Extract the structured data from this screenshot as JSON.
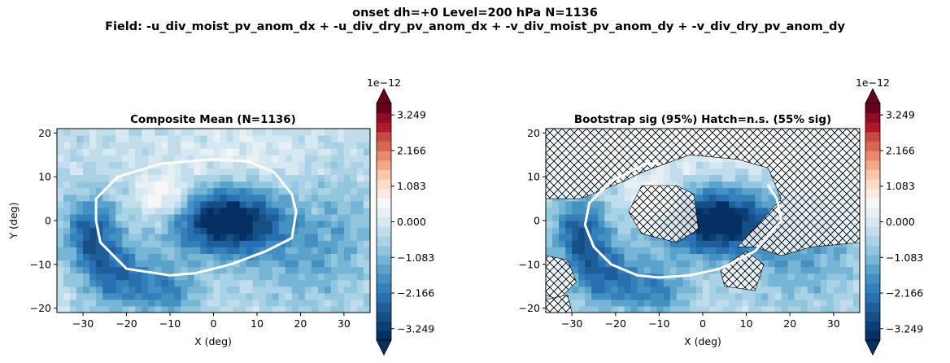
{
  "figure": {
    "title_line1": "onset  dh=+0   Level=200 hPa   N=1136",
    "title_line2": "Field: -u_div_moist_pv_anom_dx + -u_div_dry_pv_anom_dx + -v_div_moist_pv_anom_dy + -v_div_dry_pv_anom_dy"
  },
  "colors": {
    "ramp": [
      "#053061",
      "#0b3e74",
      "#164f86",
      "#205e9b",
      "#2870b1",
      "#3380bb",
      "#4291c2",
      "#5ba2cb",
      "#77b5d6",
      "#92c5de",
      "#aad2e6",
      "#c1ddeb",
      "#d6e8f1",
      "#e9f0f4",
      "#f7f7f7",
      "#faeae1",
      "#fcdbc7",
      "#f9c5ab",
      "#f4a685",
      "#e8896d",
      "#d66853",
      "#c54a41",
      "#b2182b",
      "#8e0c26",
      "#67001f"
    ],
    "contour": "#ffffff",
    "hatch": "#000000"
  },
  "chart_data": [
    {
      "type": "heatmap",
      "title": "Composite Mean  (N=1136)",
      "xlabel": "X (deg)",
      "ylabel": "Y (deg)",
      "xlim": [
        -36,
        36
      ],
      "ylim": [
        -21,
        21
      ],
      "xticks": [
        "−30",
        "−20",
        "−10",
        "0",
        "10",
        "20",
        "30"
      ],
      "yticks": [
        "−20",
        "−10",
        "0",
        "10",
        "20"
      ],
      "grid": false,
      "colorbar": {
        "scale_label": "1e−12",
        "vmin": -3.6,
        "vmax": 3.6,
        "ticks": [
          -3.249,
          -2.166,
          -1.083,
          0.0,
          1.083,
          2.166,
          3.249
        ],
        "tick_labels": [
          "−3.249",
          "−2.166",
          "−1.083",
          "0.000",
          "1.083",
          "2.166",
          "3.249"
        ]
      },
      "features": [
        {
          "kind": "core_min",
          "x": 3,
          "y": 0,
          "value": -3.5
        },
        {
          "kind": "west_min",
          "x": -28,
          "y": -3,
          "value": -2.6
        },
        {
          "kind": "sw_min",
          "x": -22,
          "y": -13,
          "value": -2.4
        },
        {
          "kind": "positive_max",
          "x": -11,
          "y": 5,
          "value": 0.9
        }
      ],
      "contour_line": [
        [
          -27,
          5
        ],
        [
          -22,
          10
        ],
        [
          -12,
          13
        ],
        [
          0,
          14
        ],
        [
          8,
          13.5
        ],
        [
          14,
          11
        ],
        [
          18,
          6
        ],
        [
          19,
          2
        ],
        [
          18,
          -4
        ],
        [
          12,
          -7
        ],
        [
          4,
          -10
        ],
        [
          -4,
          -12
        ],
        [
          -10,
          -12.5
        ],
        [
          -20,
          -11
        ],
        [
          -26,
          -5
        ],
        [
          -27,
          0
        ],
        [
          -27,
          5
        ]
      ]
    },
    {
      "type": "heatmap",
      "title": "Bootstrap sig (95%)  Hatch=n.s.  (55% sig)",
      "xlabel": "X (deg)",
      "ylabel": "",
      "xlim": [
        -36,
        36
      ],
      "ylim": [
        -21,
        21
      ],
      "xticks": [
        "−30",
        "−20",
        "−10",
        "0",
        "10",
        "20",
        "30"
      ],
      "yticks": [
        "−20",
        "−10",
        "0",
        "10",
        "20"
      ],
      "grid": false,
      "colorbar": {
        "scale_label": "1e−12",
        "vmin": -3.6,
        "vmax": 3.6,
        "ticks": [
          -3.249,
          -2.166,
          -1.083,
          0.0,
          1.083,
          2.166,
          3.249
        ],
        "tick_labels": [
          "−3.249",
          "−2.166",
          "−1.083",
          "0.000",
          "1.083",
          "2.166",
          "3.249"
        ]
      },
      "hatch_regions": [
        [
          [
            -36,
            21
          ],
          [
            36,
            21
          ],
          [
            36,
            -5
          ],
          [
            25,
            -6
          ],
          [
            18,
            -8
          ],
          [
            12,
            -6
          ],
          [
            8,
            -6
          ],
          [
            18,
            5
          ],
          [
            15,
            12
          ],
          [
            8,
            14
          ],
          [
            -3,
            15
          ],
          [
            -14,
            11
          ],
          [
            -18,
            9
          ],
          [
            -28,
            5
          ],
          [
            -36,
            5
          ]
        ],
        [
          [
            -14,
            8
          ],
          [
            -6,
            8
          ],
          [
            -2,
            6
          ],
          [
            -1,
            -2
          ],
          [
            -6,
            -5
          ],
          [
            -14,
            -3
          ],
          [
            -17,
            2
          ]
        ],
        [
          [
            -36,
            -8
          ],
          [
            -31,
            -9
          ],
          [
            -29,
            -14
          ],
          [
            -33,
            -18
          ],
          [
            -36,
            -17
          ]
        ],
        [
          [
            -36,
            -21
          ],
          [
            -30,
            -21
          ],
          [
            -31,
            -17
          ],
          [
            -36,
            -18
          ]
        ],
        [
          [
            4,
            -11
          ],
          [
            10,
            -7
          ],
          [
            14,
            -10
          ],
          [
            12,
            -16
          ],
          [
            5,
            -15
          ]
        ]
      ],
      "contour_line": [
        [
          -26,
          4
        ],
        [
          -21,
          9
        ],
        [
          -13,
          13
        ],
        [
          -10,
          13
        ]
      ],
      "contour_line_2": [
        [
          -10,
          -13
        ],
        [
          -3,
          -12.5
        ],
        [
          4,
          -11
        ],
        [
          12,
          -7
        ],
        [
          18,
          0
        ],
        [
          17,
          5
        ],
        [
          15,
          8
        ]
      ],
      "contour_line_3": [
        [
          -26,
          4
        ],
        [
          -27,
          -1
        ],
        [
          -25,
          -6
        ],
        [
          -21,
          -10
        ],
        [
          -15,
          -12.5
        ],
        [
          -10,
          -13
        ]
      ]
    }
  ]
}
